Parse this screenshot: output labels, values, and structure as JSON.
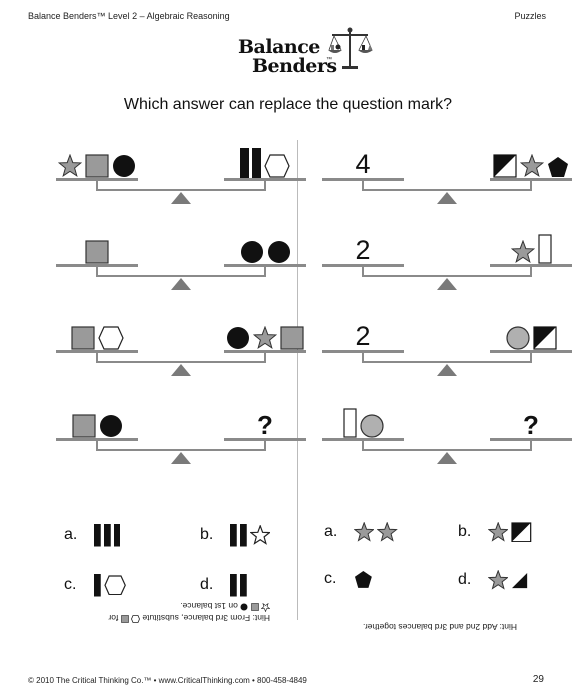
{
  "header": {
    "left": "Balance Benders™ Level 2 – Algebraic Reasoning",
    "right": "Puzzles"
  },
  "logo": {
    "line1": "Balance",
    "line2": "Benders",
    "tm": "™"
  },
  "question": "Which answer can replace the question mark?",
  "left_puzzle": {
    "balances": [
      {
        "left": [
          "star",
          "square",
          "circle"
        ],
        "right": [
          "bar",
          "bar",
          "hexagon"
        ]
      },
      {
        "left": [
          "square"
        ],
        "right": [
          "circle",
          "circle"
        ]
      },
      {
        "left": [
          "square",
          "hexagon"
        ],
        "right": [
          "circle",
          "star",
          "square"
        ]
      },
      {
        "left": [
          "square",
          "circle"
        ],
        "right": [
          "?"
        ]
      }
    ],
    "answers": [
      {
        "label": "a.",
        "shapes": [
          "bar",
          "bar",
          "bar"
        ]
      },
      {
        "label": "b.",
        "shapes": [
          "bar",
          "bar",
          "star-outline"
        ]
      },
      {
        "label": "c.",
        "shapes": [
          "bar",
          "hexagon"
        ]
      },
      {
        "label": "d.",
        "shapes": [
          "bar",
          "bar"
        ]
      }
    ],
    "hint_line1": "Hint:  From 3rd balance, substitute",
    "hint_line1_end": "for",
    "hint_line2": "on 1st balance."
  },
  "right_puzzle": {
    "balances": [
      {
        "left": [
          "4"
        ],
        "right": [
          "diag-square",
          "star",
          "pentagon"
        ]
      },
      {
        "left": [
          "2"
        ],
        "right": [
          "star",
          "tall-rect"
        ]
      },
      {
        "left": [
          "2"
        ],
        "right": [
          "circle-gray",
          "diag-square"
        ]
      },
      {
        "left": [
          "tall-rect",
          "circle-gray"
        ],
        "right": [
          "?"
        ]
      }
    ],
    "answers": [
      {
        "label": "a.",
        "shapes": [
          "star",
          "star"
        ]
      },
      {
        "label": "b.",
        "shapes": [
          "star",
          "diag-square"
        ]
      },
      {
        "label": "c.",
        "shapes": [
          "pentagon"
        ]
      },
      {
        "label": "d.",
        "shapes": [
          "star",
          "triangle"
        ]
      }
    ],
    "hint": "Hint:  Add 2nd and 3rd balances together."
  },
  "footer": {
    "left": "© 2010 The Critical Thinking Co.™ • www.CriticalThinking.com • 800-458-4849",
    "page": "29"
  },
  "colors": {
    "gray_fill": "#9a9a9a",
    "dark": "#111111",
    "beam": "#8a8a8a"
  }
}
